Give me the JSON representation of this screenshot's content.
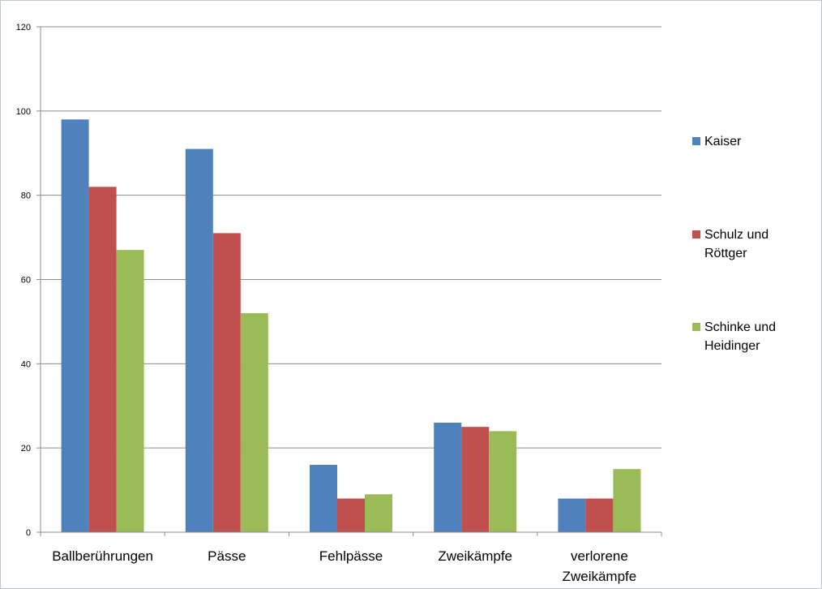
{
  "chart_data": {
    "type": "bar",
    "categories": [
      [
        "Ballberührungen"
      ],
      [
        "Pässe"
      ],
      [
        "Fehlpässe"
      ],
      [
        "Zweikämpfe"
      ],
      [
        "verlorene",
        "Zweikämpfe"
      ]
    ],
    "series": [
      {
        "name": [
          "Kaiser"
        ],
        "color": "#4f81bd",
        "values": [
          98,
          91,
          16,
          26,
          8
        ]
      },
      {
        "name": [
          "Schulz und",
          "Röttger"
        ],
        "color": "#c0504d",
        "values": [
          82,
          71,
          8,
          25,
          8
        ]
      },
      {
        "name": [
          "Schinke und",
          "Heidinger"
        ],
        "color": "#9bbb59",
        "values": [
          67,
          52,
          9,
          24,
          15
        ]
      }
    ],
    "ylim": [
      0,
      120
    ],
    "yticks": [
      0,
      20,
      40,
      60,
      80,
      100,
      120
    ],
    "grid": true,
    "legend": "right"
  }
}
